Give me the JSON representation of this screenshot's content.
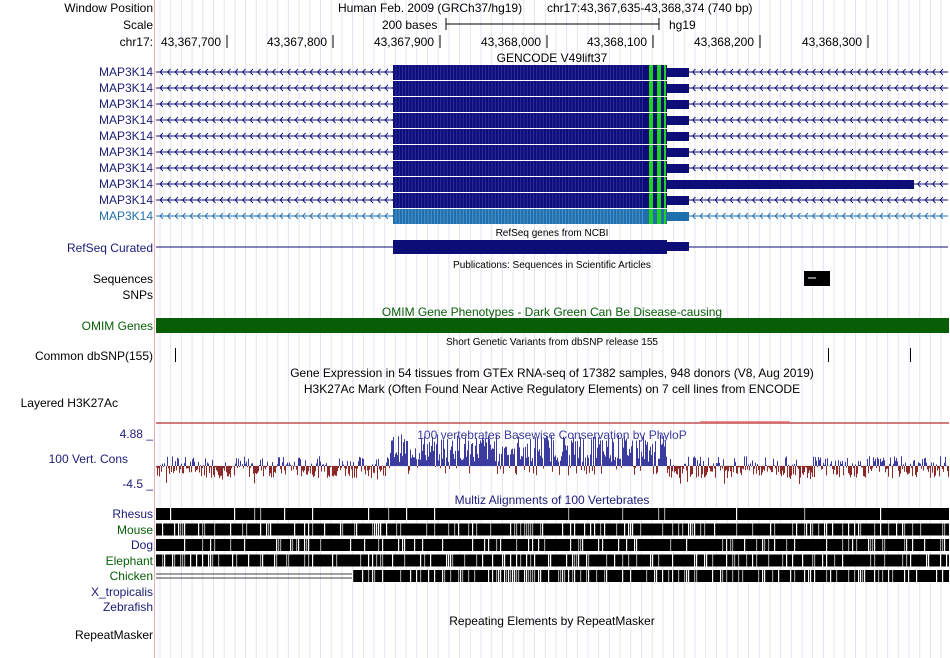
{
  "header": {
    "window_position_label": "Window Position",
    "scale_label": "Scale",
    "chr_label": "chr17:",
    "assembly": "Human Feb. 2009 (GRCh37/hg19)",
    "position": "chr17:43,367,635-43,368,374 (740 bp)",
    "scale_text": "200 bases",
    "db": "hg19",
    "ticks": [
      "43,367,700",
      "43,367,800",
      "43,367,900",
      "43,368,000",
      "43,368,100",
      "43,368,200",
      "43,368,300"
    ]
  },
  "gencode": {
    "title": "GENCODE V49lift37",
    "gene_labels": [
      "MAP3K14",
      "MAP3K14",
      "MAP3K14",
      "MAP3K14",
      "MAP3K14",
      "MAP3K14",
      "MAP3K14",
      "MAP3K14",
      "MAP3K14",
      "MAP3K14"
    ]
  },
  "refseq": {
    "label": "RefSeq Curated",
    "title": "RefSeq genes from NCBI"
  },
  "publications": {
    "title": "Publications: Sequences in Scientific Articles",
    "label": "Sequences"
  },
  "snps_label": "SNPs",
  "omim": {
    "title": "OMIM Gene Phenotypes - Dark Green Can Be Disease-causing",
    "label": "OMIM Genes",
    "color": "#075e07"
  },
  "dbsnp": {
    "title": "Short Genetic Variants from dbSNP release 155",
    "label": "Common dbSNP(155)"
  },
  "gtex": {
    "title": "Gene Expression in 54 tissues from GTEx RNA-seq of 17382 samples, 948 donors (V8, Aug 2019)"
  },
  "h3k27ac": {
    "title": "H3K27Ac Mark (Often Found Near Active Regulatory Elements) on 7 cell lines from ENCODE",
    "label": "Layered H3K27Ac"
  },
  "phylop": {
    "title": "100 vertebrates Basewise Conservation by PhyloP",
    "label": "100 Vert. Cons",
    "max_label": "4.88 _",
    "min_label": "-4.5 _",
    "pos_color": "#3c3ca0",
    "neg_color": "#8c2a2a"
  },
  "multiz": {
    "title": "Multiz Alignments of 100 Vertebrates",
    "species": [
      "Rhesus",
      "Mouse",
      "Dog",
      "Elephant",
      "Chicken",
      "X_tropicalis",
      "Zebrafish"
    ]
  },
  "repeatmasker": {
    "title": "Repeating Elements by RepeatMasker",
    "label": "RepeatMasker"
  },
  "colors": {
    "gene": "#0d0d78",
    "highlight_gene": "#1f6fae",
    "utr_green": "#22d022"
  }
}
